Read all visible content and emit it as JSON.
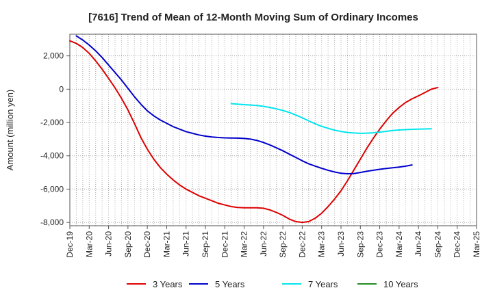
{
  "chart_data": {
    "type": "line",
    "title": "[7616]  Trend of Mean of 12-Month Moving Sum of Ordinary Incomes",
    "xlabel": "",
    "ylabel": "Amount (million yen)",
    "x_ticks": [
      "Dec-19",
      "Mar-20",
      "Jun-20",
      "Sep-20",
      "Dec-20",
      "Mar-21",
      "Jun-21",
      "Sep-21",
      "Dec-21",
      "Mar-22",
      "Jun-22",
      "Sep-22",
      "Dec-22",
      "Mar-23",
      "Jun-23",
      "Sep-23",
      "Dec-23",
      "Mar-24",
      "Jun-24",
      "Sep-24",
      "Dec-24",
      "Mar-25"
    ],
    "y_ticks": [
      2000,
      0,
      -2000,
      -4000,
      -6000,
      -8000
    ],
    "y_tick_labels": [
      "2,000",
      "0",
      "-2,000",
      "-4,000",
      "-6,000",
      "-8,000"
    ],
    "ylim": [
      -8200,
      3300
    ],
    "grid": true,
    "legend_position": "bottom",
    "series": [
      {
        "name": "3 Years",
        "color": "#dd0000",
        "start_index": 0,
        "values": [
          2900,
          2750,
          2500,
          2150,
          1700,
          1200,
          650,
          80,
          -550,
          -1250,
          -2050,
          -2900,
          -3600,
          -4200,
          -4700,
          -5100,
          -5450,
          -5750,
          -6000,
          -6200,
          -6400,
          -6550,
          -6700,
          -6850,
          -6950,
          -7050,
          -7100,
          -7120,
          -7120,
          -7120,
          -7150,
          -7250,
          -7400,
          -7580,
          -7800,
          -7950,
          -8000,
          -7950,
          -7750,
          -7450,
          -7050,
          -6600,
          -6100,
          -5500,
          -4850,
          -4200,
          -3550,
          -2950,
          -2400,
          -1900,
          -1450,
          -1100,
          -800,
          -580,
          -400,
          -200,
          0,
          100
        ]
      },
      {
        "name": "5 Years",
        "color": "#0000cc",
        "start_index": 1,
        "values": [
          3200,
          2950,
          2650,
          2300,
          1900,
          1450,
          1000,
          550,
          50,
          -450,
          -900,
          -1300,
          -1600,
          -1850,
          -2050,
          -2250,
          -2400,
          -2550,
          -2650,
          -2750,
          -2820,
          -2870,
          -2900,
          -2920,
          -2930,
          -2940,
          -2960,
          -3000,
          -3080,
          -3200,
          -3350,
          -3520,
          -3700,
          -3900,
          -4100,
          -4300,
          -4480,
          -4620,
          -4750,
          -4870,
          -4970,
          -5050,
          -5080,
          -5070,
          -5000,
          -4930,
          -4870,
          -4810,
          -4760,
          -4720,
          -4680,
          -4620,
          -4550
        ]
      },
      {
        "name": "7 Years",
        "color": "#00e5ee",
        "start_index": 25,
        "values": [
          -870,
          -900,
          -930,
          -950,
          -980,
          -1030,
          -1100,
          -1180,
          -1280,
          -1400,
          -1550,
          -1720,
          -1900,
          -2080,
          -2230,
          -2350,
          -2460,
          -2540,
          -2600,
          -2630,
          -2650,
          -2640,
          -2620,
          -2580,
          -2530,
          -2480,
          -2450,
          -2430,
          -2410,
          -2400,
          -2390,
          -2380
        ]
      },
      {
        "name": "10 Years",
        "color": "#228b22",
        "start_index": 0,
        "values": []
      }
    ]
  }
}
